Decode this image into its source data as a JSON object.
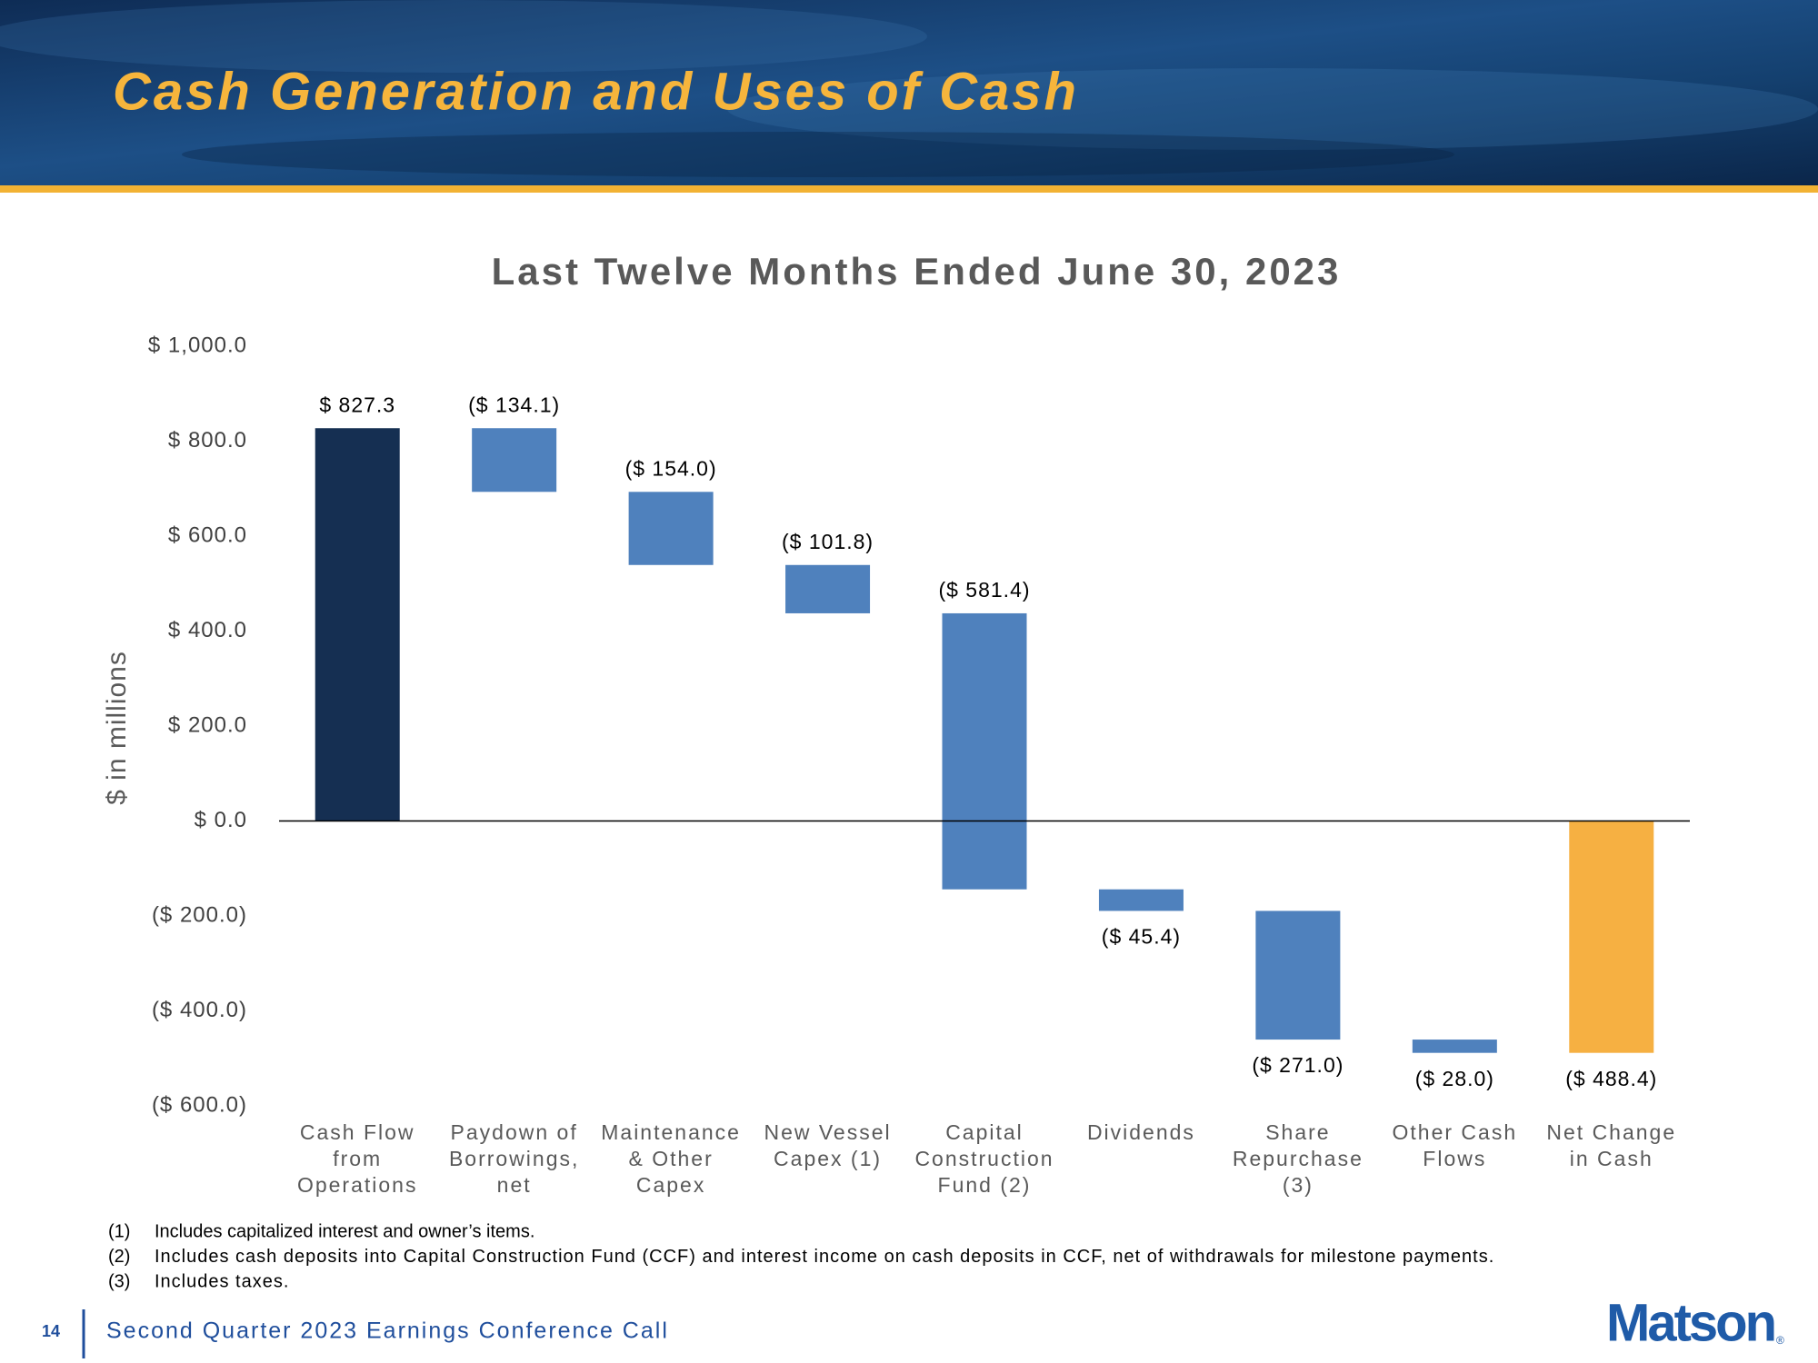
{
  "header": {
    "title": "Cash Generation and Uses of Cash"
  },
  "chart_data": {
    "type": "waterfall",
    "title": "Last Twelve Months Ended June 30, 2023",
    "y_label": "$ in millions",
    "categories": [
      "Cash Flow from Operations",
      "Paydown of Borrowings, net",
      "Maintenance & Other Capex",
      "New Vessel Capex (1)",
      "Capital Construction Fund (2)",
      "Dividends",
      "Share Repurchase (3)",
      "Other Cash Flows",
      "Net Change in Cash"
    ],
    "values": [
      827.3,
      -134.1,
      -154.0,
      -101.8,
      -581.4,
      -45.4,
      -271.0,
      -28.0,
      -488.4
    ],
    "value_labels": [
      "$ 827.3",
      "($ 134.1)",
      "($ 154.0)",
      "($ 101.8)",
      "($ 581.4)",
      "($ 45.4)",
      "($ 271.0)",
      "($ 28.0)",
      "($ 488.4)"
    ],
    "measures": [
      "absolute",
      "relative",
      "relative",
      "relative",
      "relative",
      "relative",
      "relative",
      "relative",
      "total"
    ],
    "colors": [
      "#152f52",
      "#4f81bd",
      "#4f81bd",
      "#4f81bd",
      "#4f81bd",
      "#4f81bd",
      "#4f81bd",
      "#4f81bd",
      "#f6b042"
    ],
    "ylim": [
      -600,
      1000
    ],
    "yticks": [
      {
        "value": 1000,
        "label": "$ 1,000.0"
      },
      {
        "value": 800,
        "label": "$ 800.0"
      },
      {
        "value": 600,
        "label": "$ 600.0"
      },
      {
        "value": 400,
        "label": "$ 400.0"
      },
      {
        "value": 200,
        "label": "$ 200.0"
      },
      {
        "value": 0,
        "label": "$ 0.0"
      },
      {
        "value": -200,
        "label": "($ 200.0)"
      },
      {
        "value": -400,
        "label": "($ 400.0)"
      },
      {
        "value": -600,
        "label": "($ 600.0)"
      }
    ],
    "grid": false
  },
  "footnotes": [
    {
      "number": "(1)",
      "text": "Includes capitalized interest and owner’s items."
    },
    {
      "number": "(2)",
      "text": "Includes cash deposits into Capital Construction Fund (CCF) and interest income on cash deposits in CCF, net of withdrawals for milestone payments."
    },
    {
      "number": "(3)",
      "text": "Includes taxes."
    }
  ],
  "footer": {
    "page_number": "14",
    "text": "Second Quarter 2023 Earnings Conference Call",
    "logo": "Matson",
    "logo_mark": "®"
  }
}
